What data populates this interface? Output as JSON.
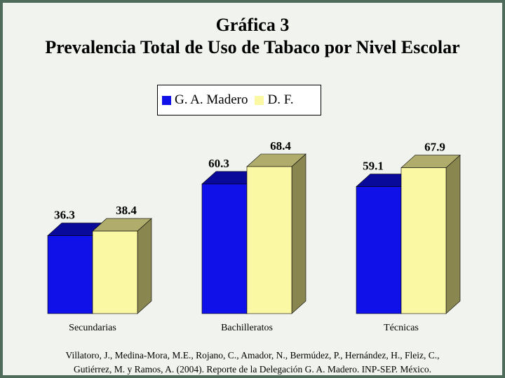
{
  "header": {
    "line1": "Gráfica 3",
    "line2": "Prevalencia Total de Uso de Tabaco por Nivel Escolar"
  },
  "colors": {
    "gam_front": "#1010e8",
    "gam_top": "#0a0a9a",
    "gam_side": "#0808a0",
    "df_front": "#fbf8a4",
    "df_top": "#b0ad6c",
    "df_side": "#8a8650"
  },
  "chart_data": {
    "type": "bar",
    "title": "Prevalencia Total de Uso de Tabaco por Nivel Escolar",
    "categories": [
      "Secundarias",
      "Bachilleratos",
      "Técnicas"
    ],
    "series": [
      {
        "name": "G. A. Madero",
        "values": [
          36.3,
          60.3,
          59.1
        ],
        "labels": [
          "36.3",
          "60.3",
          "59.1"
        ]
      },
      {
        "name": "D. F.",
        "values": [
          38.4,
          68.4,
          67.9
        ],
        "labels": [
          "38.4",
          "68.4",
          "67.9"
        ]
      }
    ],
    "style": "3d",
    "legend": "top-center",
    "grid": false
  },
  "source": {
    "line1": "Villatoro, J., Medina-Mora, M.E., Rojano, C., Amador, N., Bermúdez, P., Hernández, H., Fleiz, C.,",
    "line2": "Gutiérrez, M. y Ramos, A. (2004). Reporte de la Delegación G. A. Madero. INP-SEP. México."
  }
}
